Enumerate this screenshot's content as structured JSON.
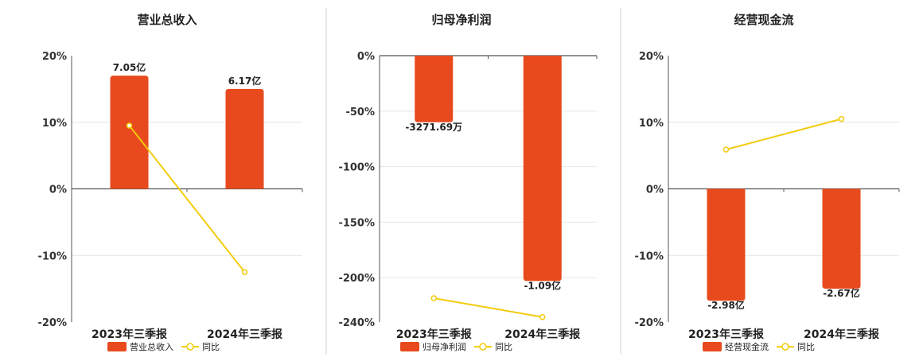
{
  "accent": {
    "bar": "#E84A1D",
    "line": "#F2CC0C",
    "axis": "#555555",
    "grid": "#E6E6E6",
    "divider": "#CFCFCF"
  },
  "chart_data": [
    {
      "type": "bar",
      "title": "营业总收入",
      "categories": [
        "2023年三季报",
        "2024年三季报"
      ],
      "bar_series": {
        "name": "营业总收入",
        "values_pct": [
          17,
          15
        ],
        "labels": [
          "7.05亿",
          "6.17亿"
        ]
      },
      "line_series": {
        "name": "同比",
        "values": [
          9.5,
          -12.5
        ]
      },
      "ylim": [
        -20,
        20
      ],
      "yticks": [
        20,
        10,
        0,
        -10,
        -20
      ],
      "ytick_labels": [
        "20%",
        "10%",
        "0%",
        "-10%",
        "-20%"
      ],
      "grid": true,
      "legend": "bottom"
    },
    {
      "type": "bar",
      "title": "归母净利润",
      "categories": [
        "2023年三季报",
        "2024年三季报"
      ],
      "bar_series": {
        "name": "归母净利润",
        "values_pct": [
          -60,
          -203
        ],
        "labels": [
          "-3271.69万",
          "-1.09亿"
        ]
      },
      "line_series": {
        "name": "同比",
        "values": [
          -218.5,
          -235.5
        ]
      },
      "ylim": [
        -240,
        0
      ],
      "yticks": [
        0,
        -50,
        -100,
        -150,
        -200,
        -240
      ],
      "ytick_labels": [
        "0%",
        "-50%",
        "-100%",
        "-150%",
        "-200%",
        "-240%"
      ],
      "grid": true,
      "legend": "bottom"
    },
    {
      "type": "bar",
      "title": "经营现金流",
      "categories": [
        "2023年三季报",
        "2024年三季报"
      ],
      "bar_series": {
        "name": "经营现金流",
        "values_pct": [
          -16.8,
          -15
        ],
        "labels": [
          "-2.98亿",
          "-2.67亿"
        ]
      },
      "line_series": {
        "name": "同比",
        "values": [
          5.9,
          10.5
        ]
      },
      "ylim": [
        -20,
        20
      ],
      "yticks": [
        20,
        10,
        0,
        -10,
        -20
      ],
      "ytick_labels": [
        "20%",
        "10%",
        "0%",
        "-10%",
        "-20%"
      ],
      "grid": true,
      "legend": "bottom"
    }
  ]
}
